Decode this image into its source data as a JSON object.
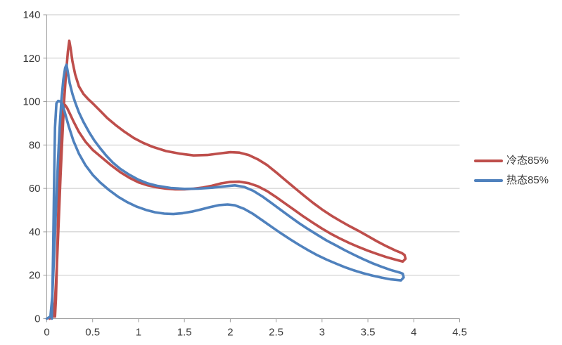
{
  "chart_data": {
    "type": "line",
    "title": "",
    "xlabel": "",
    "ylabel": "",
    "grid": "horizontal",
    "legend_position": "right",
    "x_axis": {
      "min": 0,
      "max": 4.5,
      "step": 0.5,
      "tick_labels": [
        "0",
        "0.5",
        "1",
        "1.5",
        "2",
        "2.5",
        "3",
        "3.5",
        "4",
        "4.5"
      ]
    },
    "y_axis": {
      "min": 0,
      "max": 140,
      "step": 20,
      "tick_labels": [
        "0",
        "20",
        "40",
        "60",
        "80",
        "100",
        "120",
        "140"
      ]
    },
    "series": [
      {
        "id": "cold",
        "name": "冷态85%",
        "color": "#BE4E4B",
        "shape": "hysteresis-loop",
        "peak": [
          0.24,
          128
        ],
        "points": [
          [
            0.03,
            0
          ],
          [
            0.07,
            1
          ],
          [
            0.09,
            8
          ],
          [
            0.11,
            24
          ],
          [
            0.13,
            45
          ],
          [
            0.15,
            66
          ],
          [
            0.17,
            84
          ],
          [
            0.19,
            101
          ],
          [
            0.21,
            113
          ],
          [
            0.23,
            123
          ],
          [
            0.245,
            128
          ],
          [
            0.26,
            124.5
          ],
          [
            0.28,
            118.5
          ],
          [
            0.31,
            112.5
          ],
          [
            0.35,
            107
          ],
          [
            0.4,
            103.5
          ],
          [
            0.45,
            101.2
          ],
          [
            0.5,
            99.2
          ],
          [
            0.58,
            95.8
          ],
          [
            0.66,
            92.4
          ],
          [
            0.75,
            89.2
          ],
          [
            0.85,
            86
          ],
          [
            0.95,
            83.2
          ],
          [
            1.05,
            81
          ],
          [
            1.15,
            79.2
          ],
          [
            1.3,
            77.2
          ],
          [
            1.45,
            76
          ],
          [
            1.6,
            75.2
          ],
          [
            1.75,
            75.4
          ],
          [
            1.9,
            76.2
          ],
          [
            2.0,
            76.7
          ],
          [
            2.1,
            76.5
          ],
          [
            2.2,
            75.4
          ],
          [
            2.3,
            73.4
          ],
          [
            2.4,
            70.8
          ],
          [
            2.5,
            67.4
          ],
          [
            2.6,
            63.8
          ],
          [
            2.7,
            60.3
          ],
          [
            2.8,
            56.8
          ],
          [
            2.9,
            53.4
          ],
          [
            3.0,
            50.3
          ],
          [
            3.1,
            47.5
          ],
          [
            3.2,
            45
          ],
          [
            3.3,
            42.6
          ],
          [
            3.4,
            40.4
          ],
          [
            3.5,
            38
          ],
          [
            3.6,
            35.6
          ],
          [
            3.7,
            33.4
          ],
          [
            3.8,
            31.4
          ],
          [
            3.87,
            30.2
          ],
          [
            3.9,
            29.3
          ],
          [
            3.91,
            27.6
          ],
          [
            3.88,
            26.3
          ],
          [
            3.8,
            27.2
          ],
          [
            3.7,
            28.4
          ],
          [
            3.6,
            29.8
          ],
          [
            3.5,
            31.3
          ],
          [
            3.4,
            33
          ],
          [
            3.3,
            34.8
          ],
          [
            3.2,
            36.8
          ],
          [
            3.1,
            39
          ],
          [
            3.0,
            41.5
          ],
          [
            2.9,
            44.2
          ],
          [
            2.8,
            47
          ],
          [
            2.7,
            50
          ],
          [
            2.6,
            53
          ],
          [
            2.5,
            56
          ],
          [
            2.4,
            58.8
          ],
          [
            2.3,
            61
          ],
          [
            2.2,
            62.4
          ],
          [
            2.1,
            63.1
          ],
          [
            2.0,
            63
          ],
          [
            1.9,
            62.3
          ],
          [
            1.8,
            61.2
          ],
          [
            1.7,
            60.4
          ],
          [
            1.6,
            59.9
          ],
          [
            1.5,
            59.6
          ],
          [
            1.4,
            59.6
          ],
          [
            1.3,
            59.9
          ],
          [
            1.2,
            60.5
          ],
          [
            1.1,
            61.4
          ],
          [
            1.0,
            62.8
          ],
          [
            0.9,
            64.9
          ],
          [
            0.8,
            67.5
          ],
          [
            0.7,
            70.7
          ],
          [
            0.6,
            74.2
          ],
          [
            0.5,
            77.8
          ],
          [
            0.42,
            81.6
          ],
          [
            0.35,
            86
          ],
          [
            0.29,
            91
          ],
          [
            0.25,
            94.6
          ],
          [
            0.22,
            97.2
          ],
          [
            0.2,
            98.4
          ],
          [
            0.18,
            97.8
          ],
          [
            0.16,
            92.5
          ],
          [
            0.145,
            79
          ],
          [
            0.13,
            57
          ],
          [
            0.115,
            31
          ],
          [
            0.1,
            9
          ],
          [
            0.09,
            1
          ]
        ]
      },
      {
        "id": "hot",
        "name": "热态85%",
        "color": "#4F81BD",
        "shape": "hysteresis-loop",
        "peak": [
          0.215,
          117
        ],
        "points": [
          [
            0.0,
            0
          ],
          [
            0.04,
            1
          ],
          [
            0.06,
            10
          ],
          [
            0.08,
            29
          ],
          [
            0.1,
            50
          ],
          [
            0.12,
            71
          ],
          [
            0.14,
            88
          ],
          [
            0.16,
            101
          ],
          [
            0.18,
            110
          ],
          [
            0.2,
            115.5
          ],
          [
            0.215,
            117
          ],
          [
            0.23,
            113.5
          ],
          [
            0.25,
            108.5
          ],
          [
            0.28,
            103.5
          ],
          [
            0.31,
            99.6
          ],
          [
            0.35,
            95
          ],
          [
            0.4,
            90.6
          ],
          [
            0.46,
            86
          ],
          [
            0.52,
            82
          ],
          [
            0.58,
            78.6
          ],
          [
            0.65,
            75
          ],
          [
            0.72,
            71.9
          ],
          [
            0.8,
            69
          ],
          [
            0.9,
            66.3
          ],
          [
            1.0,
            64
          ],
          [
            1.1,
            62.3
          ],
          [
            1.2,
            61.2
          ],
          [
            1.35,
            60.2
          ],
          [
            1.5,
            59.8
          ],
          [
            1.65,
            59.9
          ],
          [
            1.8,
            60.3
          ],
          [
            1.95,
            61
          ],
          [
            2.05,
            61.4
          ],
          [
            2.15,
            60.7
          ],
          [
            2.25,
            58.9
          ],
          [
            2.35,
            56.3
          ],
          [
            2.45,
            53.2
          ],
          [
            2.55,
            50.1
          ],
          [
            2.65,
            47
          ],
          [
            2.75,
            44
          ],
          [
            2.85,
            41.2
          ],
          [
            2.95,
            38.6
          ],
          [
            3.05,
            36
          ],
          [
            3.15,
            33.8
          ],
          [
            3.25,
            31.5
          ],
          [
            3.35,
            29.4
          ],
          [
            3.45,
            27.4
          ],
          [
            3.55,
            25.5
          ],
          [
            3.65,
            23.9
          ],
          [
            3.75,
            22.4
          ],
          [
            3.85,
            21.2
          ],
          [
            3.88,
            20.7
          ],
          [
            3.89,
            19
          ],
          [
            3.86,
            17.6
          ],
          [
            3.75,
            18.1
          ],
          [
            3.65,
            18.9
          ],
          [
            3.55,
            19.8
          ],
          [
            3.45,
            20.9
          ],
          [
            3.35,
            22.2
          ],
          [
            3.25,
            23.7
          ],
          [
            3.15,
            25.4
          ],
          [
            3.05,
            27.2
          ],
          [
            2.95,
            29.2
          ],
          [
            2.85,
            31.5
          ],
          [
            2.75,
            34
          ],
          [
            2.65,
            36.6
          ],
          [
            2.55,
            39.4
          ],
          [
            2.45,
            42.3
          ],
          [
            2.35,
            45.3
          ],
          [
            2.25,
            48.2
          ],
          [
            2.15,
            50.6
          ],
          [
            2.05,
            52.2
          ],
          [
            1.97,
            52.6
          ],
          [
            1.88,
            52.3
          ],
          [
            1.78,
            51.4
          ],
          [
            1.68,
            50.3
          ],
          [
            1.58,
            49.3
          ],
          [
            1.48,
            48.6
          ],
          [
            1.38,
            48.2
          ],
          [
            1.28,
            48.4
          ],
          [
            1.18,
            49
          ],
          [
            1.08,
            50.1
          ],
          [
            0.98,
            51.6
          ],
          [
            0.88,
            53.6
          ],
          [
            0.78,
            56.1
          ],
          [
            0.68,
            59.2
          ],
          [
            0.58,
            62.8
          ],
          [
            0.5,
            66.3
          ],
          [
            0.42,
            70.8
          ],
          [
            0.35,
            76
          ],
          [
            0.29,
            82
          ],
          [
            0.24,
            88.5
          ],
          [
            0.2,
            94.5
          ],
          [
            0.17,
            98.8
          ],
          [
            0.15,
            100
          ],
          [
            0.125,
            100.3
          ],
          [
            0.105,
            99.2
          ],
          [
            0.09,
            88
          ],
          [
            0.08,
            62
          ],
          [
            0.07,
            32
          ],
          [
            0.06,
            8
          ],
          [
            0.055,
            0
          ]
        ]
      }
    ]
  },
  "legend": {
    "items": [
      {
        "label": "冷态85%"
      },
      {
        "label": "热态85%"
      }
    ]
  },
  "style": {
    "gridline_color": "#c8c8c8",
    "axis_color": "#9b9b9b",
    "label_color": "#3a3a3a",
    "background": "#ffffff",
    "line_width": 3.6
  }
}
